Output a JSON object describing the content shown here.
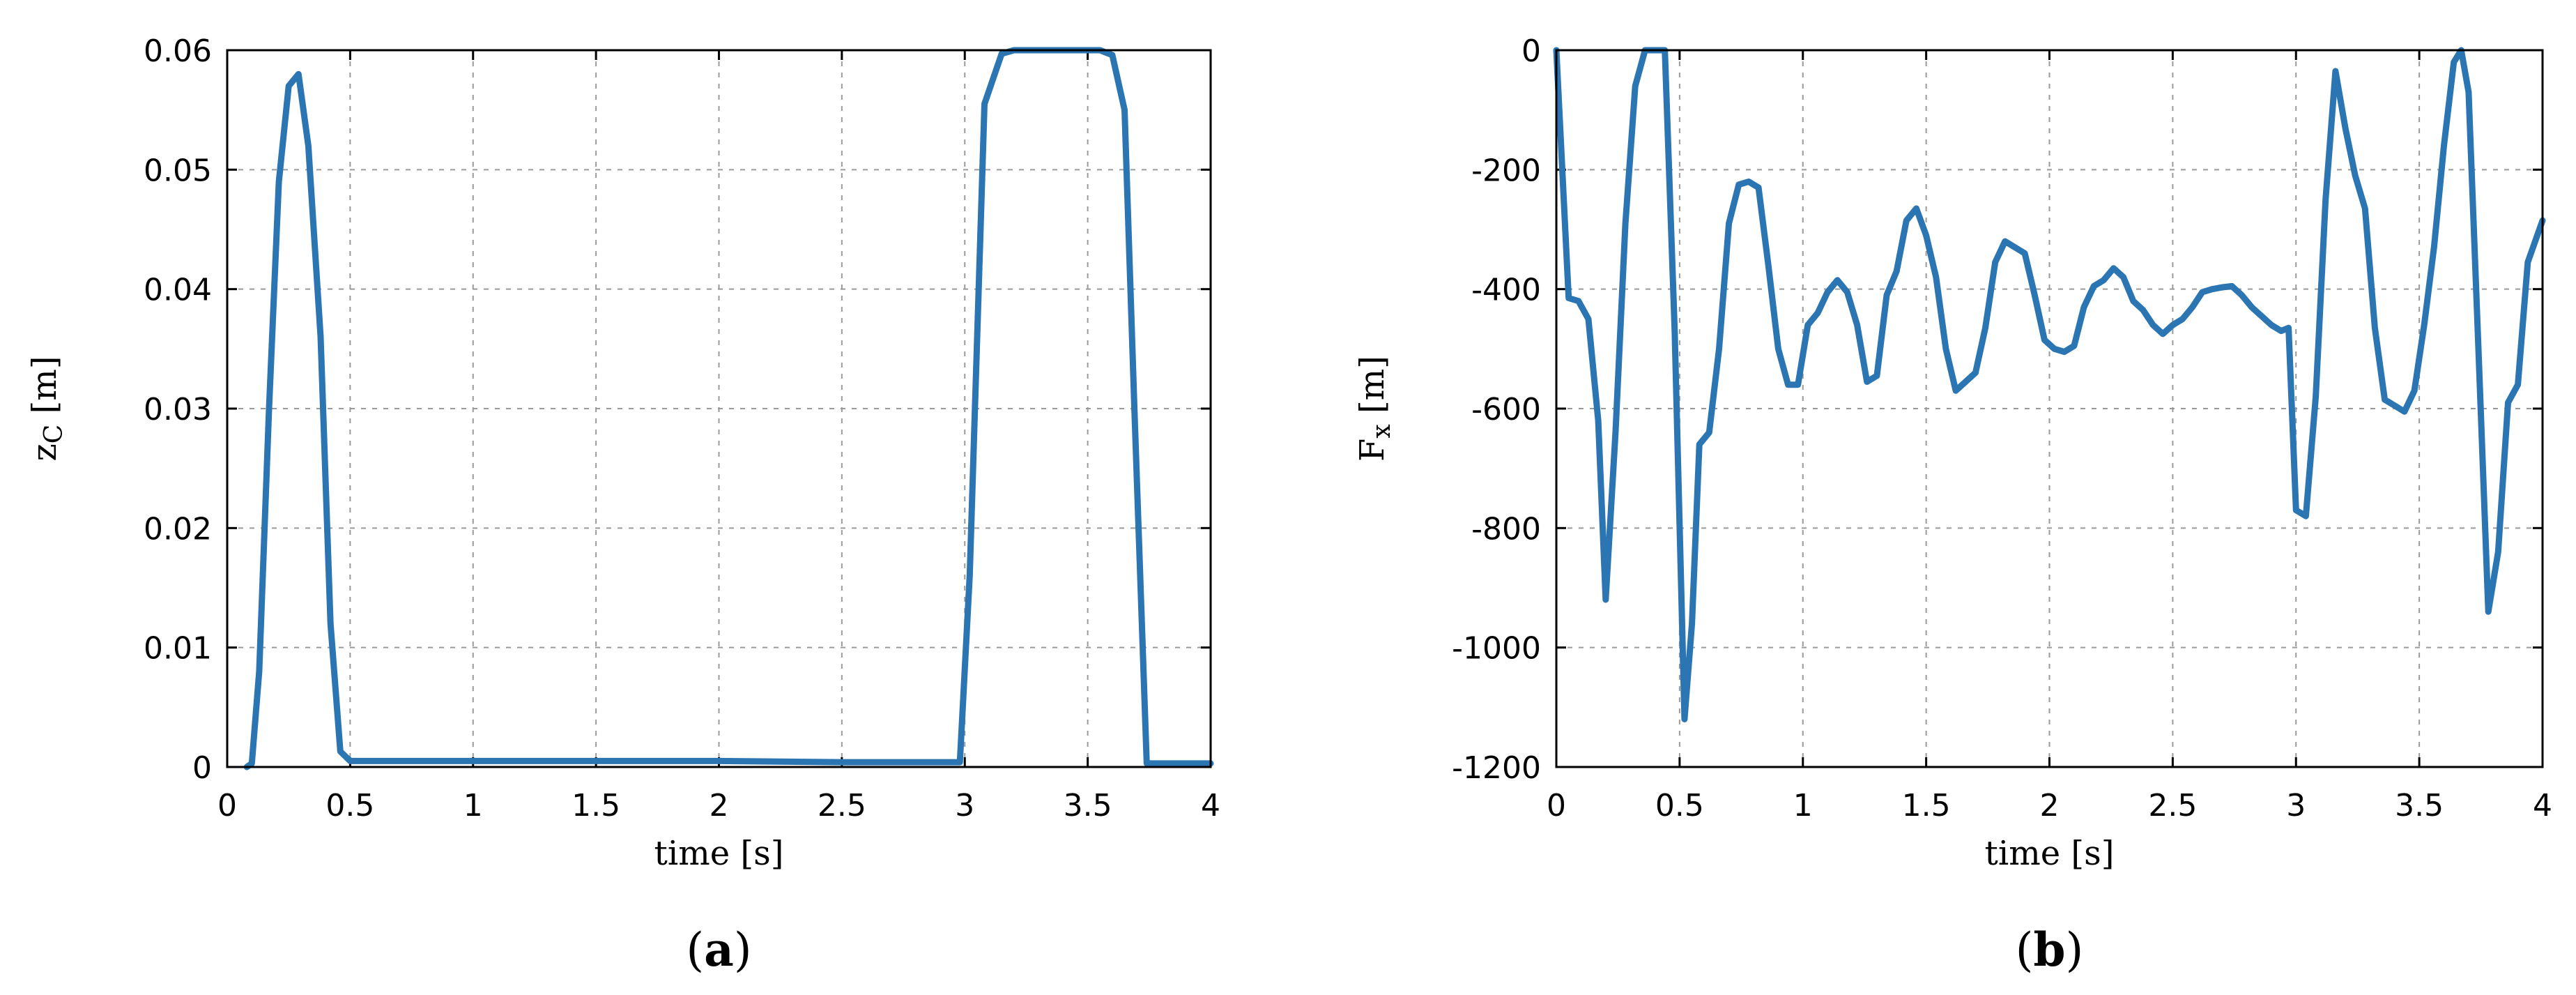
{
  "colors": {
    "series": "#2b75b3"
  },
  "chart_data": [
    {
      "type": "line",
      "panel_label_open": "(",
      "panel_label": "a",
      "panel_label_close": ")",
      "xlabel": "time [s]",
      "ylabel_main": "z",
      "ylabel_sub": "C",
      "ylabel_unit": " [m]",
      "xlim": [
        0,
        4
      ],
      "ylim": [
        0,
        0.06
      ],
      "grid": true,
      "x_ticks": [
        0,
        0.5,
        1,
        1.5,
        2,
        2.5,
        3,
        3.5,
        4
      ],
      "x_tick_labels": [
        "0",
        "0.5",
        "1",
        "1.5",
        "2",
        "2.5",
        "3",
        "3.5",
        "4"
      ],
      "y_ticks": [
        0,
        0.01,
        0.02,
        0.03,
        0.04,
        0.05,
        0.06
      ],
      "y_tick_labels": [
        "0",
        "0.01",
        "0.02",
        "0.03",
        "0.04",
        "0.05",
        "0.06"
      ],
      "series": [
        {
          "x": [
            0.08,
            0.1,
            0.13,
            0.17,
            0.21,
            0.25,
            0.29,
            0.33,
            0.38,
            0.42,
            0.46,
            0.5,
            1.0,
            1.5,
            2.0,
            2.5,
            2.98,
            3.02,
            3.08,
            3.15,
            3.2,
            3.3,
            3.4,
            3.5,
            3.55,
            3.6,
            3.65,
            3.69,
            3.74,
            3.8,
            4.0
          ],
          "y": [
            0.0,
            0.0003,
            0.008,
            0.03,
            0.049,
            0.057,
            0.058,
            0.052,
            0.036,
            0.012,
            0.0013,
            0.0005,
            0.0005,
            0.0005,
            0.0005,
            0.0004,
            0.0004,
            0.016,
            0.0555,
            0.0597,
            0.06,
            0.06,
            0.06,
            0.06,
            0.06,
            0.0596,
            0.055,
            0.03,
            0.0003,
            0.0003,
            0.0003
          ]
        }
      ]
    },
    {
      "type": "line",
      "panel_label_open": "(",
      "panel_label": "b",
      "panel_label_close": ")",
      "xlabel": "time [s]",
      "ylabel_main": "F",
      "ylabel_sub": "x",
      "ylabel_unit": " [m]",
      "xlim": [
        0,
        4
      ],
      "ylim": [
        -1200,
        0
      ],
      "grid": true,
      "x_ticks": [
        0,
        0.5,
        1,
        1.5,
        2,
        2.5,
        3,
        3.5,
        4
      ],
      "x_tick_labels": [
        "0",
        "0.5",
        "1",
        "1.5",
        "2",
        "2.5",
        "3",
        "3.5",
        "4"
      ],
      "y_ticks": [
        0,
        -200,
        -400,
        -600,
        -800,
        -1000,
        -1200
      ],
      "y_tick_labels": [
        "0",
        "-200",
        "-400",
        "-600",
        "-800",
        "-1000",
        "-1200"
      ],
      "series": [
        {
          "x": [
            0.0,
            0.05,
            0.09,
            0.13,
            0.17,
            0.2,
            0.24,
            0.28,
            0.32,
            0.36,
            0.4,
            0.44,
            0.48,
            0.52,
            0.55,
            0.58,
            0.62,
            0.66,
            0.7,
            0.74,
            0.78,
            0.82,
            0.86,
            0.9,
            0.94,
            0.98,
            1.02,
            1.06,
            1.1,
            1.14,
            1.18,
            1.22,
            1.26,
            1.3,
            1.34,
            1.38,
            1.42,
            1.46,
            1.5,
            1.54,
            1.58,
            1.62,
            1.66,
            1.7,
            1.74,
            1.78,
            1.82,
            1.86,
            1.9,
            1.94,
            1.98,
            2.02,
            2.06,
            2.1,
            2.14,
            2.18,
            2.22,
            2.26,
            2.3,
            2.34,
            2.38,
            2.42,
            2.46,
            2.5,
            2.54,
            2.58,
            2.62,
            2.66,
            2.7,
            2.74,
            2.78,
            2.82,
            2.86,
            2.9,
            2.94,
            2.97,
            3.0,
            3.04,
            3.08,
            3.12,
            3.16,
            3.2,
            3.24,
            3.28,
            3.32,
            3.36,
            3.4,
            3.44,
            3.48,
            3.52,
            3.56,
            3.6,
            3.64,
            3.67,
            3.7,
            3.74,
            3.78,
            3.82,
            3.86,
            3.9,
            3.94,
            3.97,
            4.0
          ],
          "y": [
            0,
            -415,
            -420,
            -450,
            -620,
            -920,
            -640,
            -290,
            -60,
            0,
            0,
            0,
            -470,
            -1120,
            -960,
            -660,
            -640,
            -500,
            -290,
            -225,
            -220,
            -230,
            -360,
            -500,
            -560,
            -560,
            -460,
            -440,
            -405,
            -385,
            -405,
            -460,
            -555,
            -545,
            -410,
            -370,
            -285,
            -265,
            -310,
            -380,
            -500,
            -570,
            -555,
            -540,
            -465,
            -355,
            -320,
            -330,
            -340,
            -410,
            -485,
            -500,
            -505,
            -495,
            -430,
            -395,
            -385,
            -365,
            -380,
            -420,
            -435,
            -460,
            -475,
            -460,
            -450,
            -430,
            -405,
            -400,
            -397,
            -395,
            -410,
            -430,
            -445,
            -460,
            -470,
            -465,
            -770,
            -780,
            -580,
            -250,
            -35,
            -130,
            -210,
            -265,
            -465,
            -585,
            -595,
            -605,
            -570,
            -460,
            -330,
            -160,
            -20,
            0,
            -70,
            -500,
            -940,
            -840,
            -590,
            -560,
            -355,
            -320,
            -285
          ]
        }
      ]
    }
  ]
}
